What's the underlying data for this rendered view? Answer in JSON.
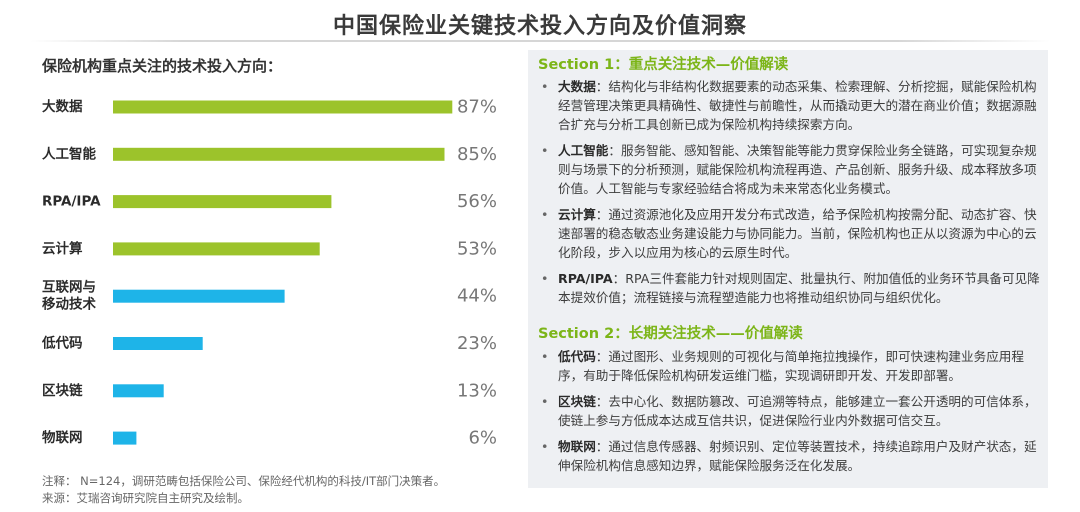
{
  "page_title": "中国保险业关键技术投入方向及价值洞察",
  "chart_data": {
    "type": "bar",
    "orientation": "horizontal",
    "title": "保险机构重点关注的技术投入方向：",
    "categories": [
      "大数据",
      "人工智能",
      "RPA/IPA",
      "云计算",
      "互联网与移动技术",
      "低代码",
      "区块链",
      "物联网"
    ],
    "category_lines": [
      [
        "大数据"
      ],
      [
        "人工智能"
      ],
      [
        "RPA/IPA"
      ],
      [
        "云计算"
      ],
      [
        "互联网与",
        "移动技术"
      ],
      [
        "低代码"
      ],
      [
        "区块链"
      ],
      [
        "物联网"
      ]
    ],
    "values": [
      87,
      85,
      56,
      53,
      44,
      23,
      13,
      6
    ],
    "value_labels": [
      "87%",
      "85%",
      "56%",
      "53%",
      "44%",
      "23%",
      "13%",
      "6%"
    ],
    "colors": [
      "#9cc32b",
      "#9cc32b",
      "#9cc32b",
      "#9cc32b",
      "#1eb4e8",
      "#1eb4e8",
      "#1eb4e8",
      "#1eb4e8"
    ],
    "xlim": [
      0,
      100
    ],
    "grid": false,
    "xlabel": "",
    "ylabel": ""
  },
  "notes": [
    "注释： N=124，调研范畴包括保险公司、保险经代机构的科技/IT部门决策者。",
    "来源：艾瑞咨询研究院自主研究及绘制。"
  ],
  "section1": {
    "title": "Section 1：重点关注技术—价值解读",
    "items": [
      {
        "key": "大数据",
        "text": "：结构化与非结构化数据要素的动态采集、检索理解、分析挖掘，赋能保险机构经营管理决策更具精确性、敏捷性与前瞻性，从而撬动更大的潜在商业价值；数据源融合扩充与分析工具创新已成为保险机构持续探索方向。"
      },
      {
        "key": "人工智能",
        "text": "：服务智能、感知智能、决策智能等能力贯穿保险业务全链路，可实现复杂规则与场景下的分析预测，赋能保险机构流程再造、产品创新、服务升级、成本释放多项价值。人工智能与专家经验结合将成为未来常态化业务模式。"
      },
      {
        "key": "云计算",
        "text": "：通过资源池化及应用开发分布式改造，给予保险机构按需分配、动态扩容、快速部署的稳态敏态业务建设能力与协同能力。当前，保险机构也正从以资源为中心的云化阶段，步入以应用为核心的云原生时代。"
      },
      {
        "key": "RPA/IPA",
        "text": "：RPA三件套能力针对规则固定、批量执行、附加值低的业务环节具备可见降本提效价值；流程链接与流程塑造能力也将推动组织协同与组织优化。"
      }
    ]
  },
  "section2": {
    "title": "Section 2：长期关注技术——价值解读",
    "items": [
      {
        "key": "低代码",
        "text": "：通过图形、业务规则的可视化与简单拖拉拽操作，即可快速构建业务应用程序，有助于降低保险机构研发运维门槛，实现调研即开发、开发即部署。"
      },
      {
        "key": "区块链",
        "text": "：去中心化、数据防篡改、可追溯等特点，能够建立一套公开透明的可信体系，使链上参与方低成本达成互信共识，促进保险行业内外数据可信交互。"
      },
      {
        "key": "物联网",
        "text": "：通过信息传感器、射频识别、定位等装置技术，持续追踪用户及财产状态，延伸保险机构信息感知边界，赋能保险服务泛在化发展。"
      }
    ]
  }
}
